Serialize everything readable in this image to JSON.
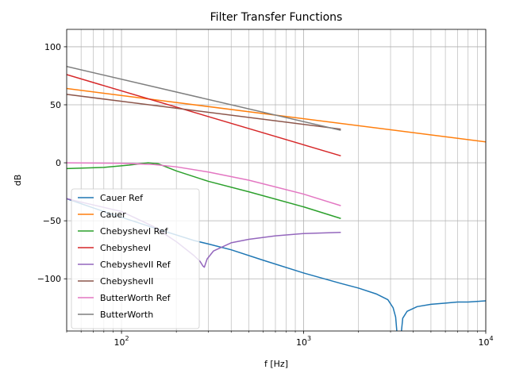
{
  "chart_data": {
    "type": "line",
    "title": "Filter Transfer Functions",
    "xlabel": "f [Hz]",
    "ylabel": "dB",
    "xscale": "log",
    "xlim": [
      50,
      10000
    ],
    "ylim": [
      -145,
      115
    ],
    "grid": "major and minor x, major y",
    "legend_position": "lower-left",
    "x_ticks": [
      {
        "value": 100,
        "base": "10",
        "exp": "2"
      },
      {
        "value": 1000,
        "base": "10",
        "exp": "3"
      },
      {
        "value": 10000,
        "base": "10",
        "exp": "4"
      }
    ],
    "y_ticks": [
      {
        "value": 100,
        "label": "100"
      },
      {
        "value": 50,
        "label": "50"
      },
      {
        "value": 0,
        "label": "0"
      },
      {
        "value": -50,
        "label": "−50"
      },
      {
        "value": -100,
        "label": "−100"
      }
    ],
    "series": [
      {
        "name": "Cauer Ref",
        "color": "#1f77b4",
        "points": [
          [
            50,
            -31
          ],
          [
            80,
            -42
          ],
          [
            150,
            -56
          ],
          [
            250,
            -67
          ],
          [
            300,
            -70
          ],
          [
            400,
            -75
          ],
          [
            600,
            -84
          ],
          [
            1000,
            -95
          ],
          [
            1600,
            -104
          ],
          [
            2000,
            -108
          ],
          [
            2500,
            -113
          ],
          [
            2900,
            -118
          ],
          [
            3100,
            -125
          ],
          [
            3200,
            -133
          ],
          [
            3300,
            -158
          ],
          [
            3340,
            -180
          ],
          [
            3380,
            -158
          ],
          [
            3500,
            -134
          ],
          [
            3700,
            -128
          ],
          [
            4200,
            -124
          ],
          [
            5000,
            -122
          ],
          [
            6000,
            -121
          ],
          [
            7000,
            -120
          ],
          [
            8000,
            -120
          ],
          [
            10000,
            -119
          ]
        ]
      },
      {
        "name": "Cauer",
        "color": "#ff7f0e",
        "points": [
          [
            50,
            64
          ],
          [
            10000,
            18
          ]
        ]
      },
      {
        "name": "ChebyshevI Ref",
        "color": "#2ca02c",
        "points": [
          [
            50,
            -5
          ],
          [
            80,
            -4
          ],
          [
            110,
            -2
          ],
          [
            140,
            0
          ],
          [
            160,
            -1
          ],
          [
            200,
            -7
          ],
          [
            300,
            -16
          ],
          [
            500,
            -25
          ],
          [
            1000,
            -38
          ],
          [
            1600,
            -48
          ]
        ]
      },
      {
        "name": "ChebyshevI",
        "color": "#d62728",
        "points": [
          [
            50,
            76
          ],
          [
            1600,
            6
          ]
        ]
      },
      {
        "name": "ChebyshevII Ref",
        "color": "#9467bd",
        "points": [
          [
            50,
            -31
          ],
          [
            100,
            -42
          ],
          [
            150,
            -55
          ],
          [
            200,
            -68
          ],
          [
            250,
            -80
          ],
          [
            270,
            -85
          ],
          [
            280,
            -89
          ],
          [
            285,
            -90
          ],
          [
            295,
            -83
          ],
          [
            320,
            -76
          ],
          [
            400,
            -69
          ],
          [
            500,
            -66
          ],
          [
            700,
            -63
          ],
          [
            1000,
            -61
          ],
          [
            1600,
            -60
          ]
        ]
      },
      {
        "name": "ChebyshevII",
        "color": "#8c564b",
        "points": [
          [
            50,
            59
          ],
          [
            1600,
            29
          ]
        ]
      },
      {
        "name": "ButterWorth Ref",
        "color": "#e377c2",
        "points": [
          [
            50,
            0
          ],
          [
            100,
            -0.5
          ],
          [
            150,
            -1.5
          ],
          [
            200,
            -3.5
          ],
          [
            300,
            -8
          ],
          [
            500,
            -15
          ],
          [
            1000,
            -27
          ],
          [
            1600,
            -37
          ]
        ]
      },
      {
        "name": "ButterWorth",
        "color": "#7f7f7f",
        "points": [
          [
            50,
            83
          ],
          [
            1600,
            28
          ]
        ]
      }
    ]
  }
}
